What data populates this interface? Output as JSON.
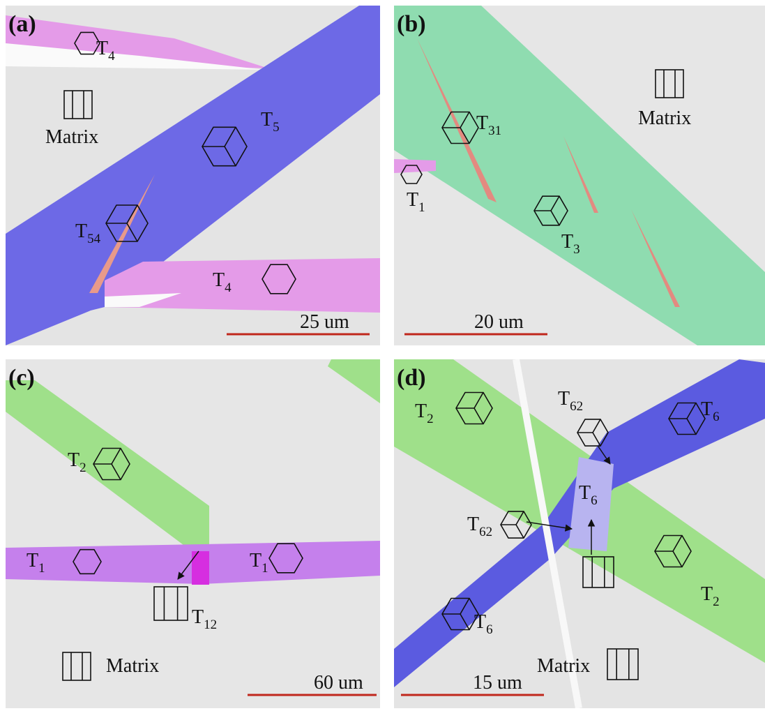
{
  "panels": [
    {
      "tag": "(a)",
      "labels": [
        {
          "letter": "T",
          "sub": "4"
        },
        {
          "letter": "T",
          "sub": "5"
        },
        {
          "letter": "T",
          "sub": "54"
        },
        {
          "letter": "T",
          "sub": "4"
        }
      ],
      "matrix": "Matrix",
      "scale": "25 um"
    },
    {
      "tag": "(b)",
      "labels": [
        {
          "letter": "T",
          "sub": "31"
        },
        {
          "letter": "T",
          "sub": "1"
        },
        {
          "letter": "T",
          "sub": "3"
        }
      ],
      "matrix": "Matrix",
      "scale": "20 um"
    },
    {
      "tag": "(c)",
      "labels": [
        {
          "letter": "T",
          "sub": "2"
        },
        {
          "letter": "T",
          "sub": "1"
        },
        {
          "letter": "T",
          "sub": "1"
        },
        {
          "letter": "T",
          "sub": "12"
        }
      ],
      "matrix": "Matrix",
      "scale": "60 um"
    },
    {
      "tag": "(d)",
      "labels": [
        {
          "letter": "T",
          "sub": "2"
        },
        {
          "letter": "T",
          "sub": "62"
        },
        {
          "letter": "T",
          "sub": "6"
        },
        {
          "letter": "T",
          "sub": "6"
        },
        {
          "letter": "T",
          "sub": "62"
        },
        {
          "letter": "T",
          "sub": "2"
        },
        {
          "letter": "T",
          "sub": "6"
        }
      ],
      "matrix": "Matrix",
      "scale": "15 um"
    }
  ]
}
